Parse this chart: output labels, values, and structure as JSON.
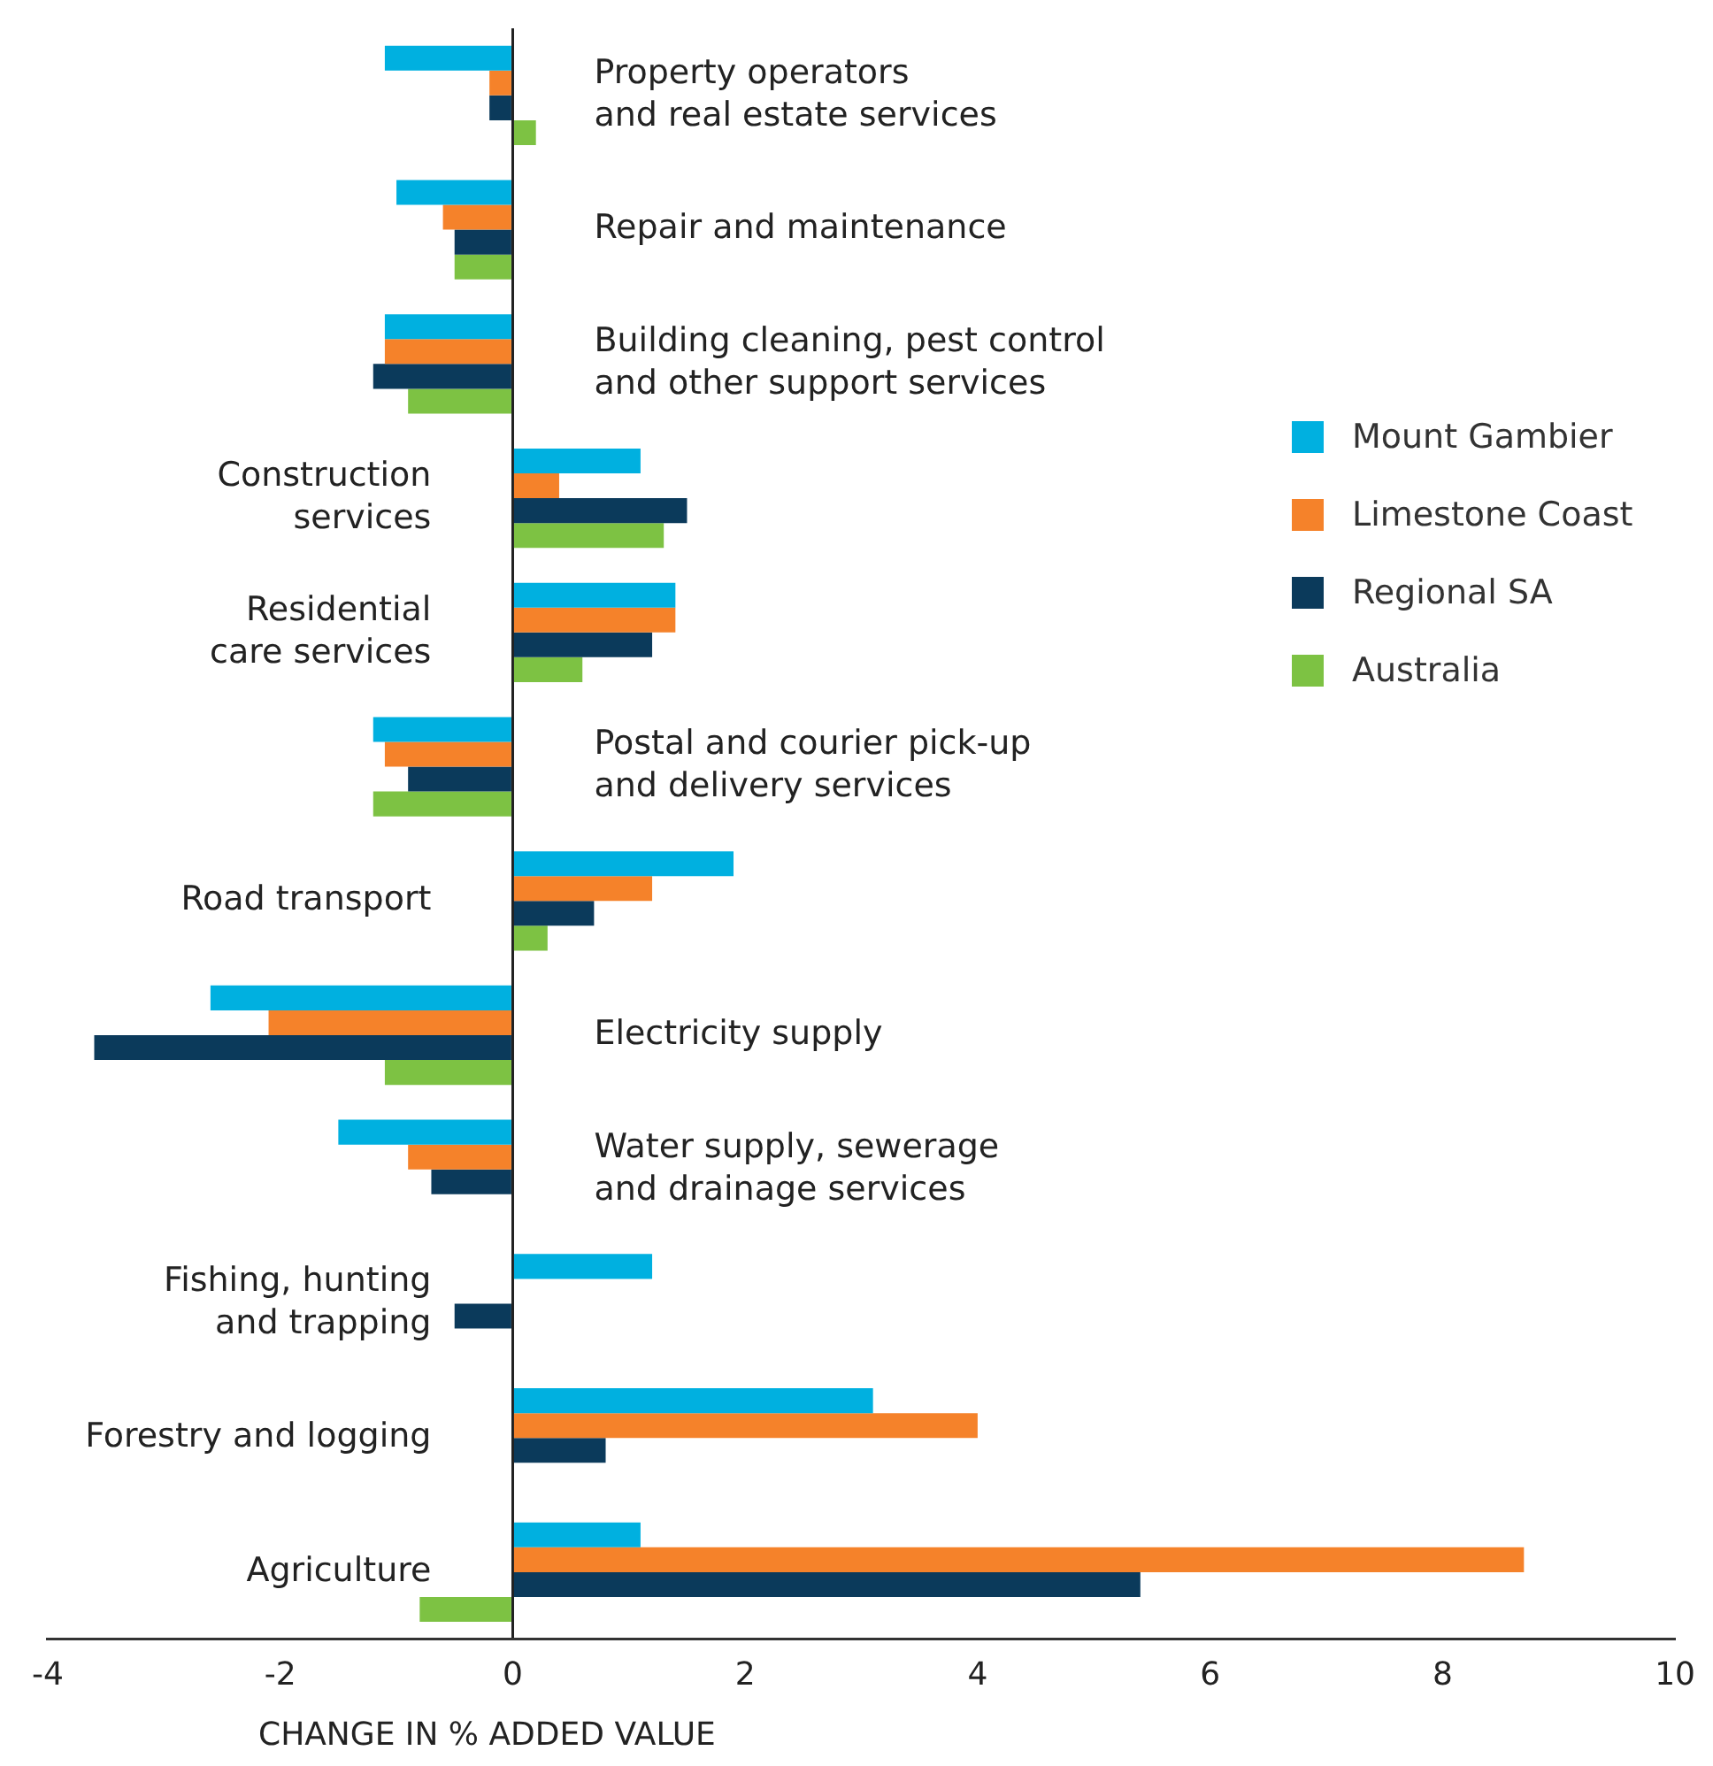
{
  "chart_data": {
    "type": "bar",
    "orientation": "horizontal",
    "xlabel": "CHANGE IN % ADDED VALUE",
    "categories": [
      "Property operators\nand real estate services",
      "Repair and maintenance",
      "Building cleaning, pest control\nand other support services",
      "Construction\nservices",
      "Residential\ncare services",
      "Postal and courier pick-up\nand delivery services",
      "Road transport",
      "Electricity supply",
      "Water supply, sewerage\nand drainage services",
      "Fishing, hunting\nand trapping",
      "Forestry and logging",
      "Agriculture"
    ],
    "series": [
      {
        "name": "Mount Gambier",
        "color": "#00b0e0",
        "values": [
          -1.1,
          -1.0,
          -1.1,
          1.1,
          1.4,
          -1.2,
          1.9,
          -2.6,
          -1.5,
          1.2,
          3.1,
          1.1
        ]
      },
      {
        "name": "Limestone Coast",
        "color": "#f5822a",
        "values": [
          -0.2,
          -0.6,
          -1.1,
          0.4,
          1.4,
          -1.1,
          1.2,
          -2.1,
          -0.9,
          null,
          4.0,
          8.7
        ]
      },
      {
        "name": "Regional SA",
        "color": "#0b3a5b",
        "values": [
          -0.2,
          -0.5,
          -1.2,
          1.5,
          1.2,
          -0.9,
          0.7,
          -3.6,
          -0.7,
          -0.5,
          0.8,
          5.4
        ]
      },
      {
        "name": "Australia",
        "color": "#7dc243",
        "values": [
          0.2,
          -0.5,
          -0.9,
          1.3,
          0.6,
          -1.2,
          0.3,
          -1.1,
          null,
          null,
          null,
          -0.8
        ]
      }
    ],
    "xlim": [
      -4,
      10
    ],
    "xticks": [
      -4,
      -2,
      0,
      2,
      4,
      6,
      8,
      10
    ],
    "grid": false,
    "legend": "right"
  }
}
